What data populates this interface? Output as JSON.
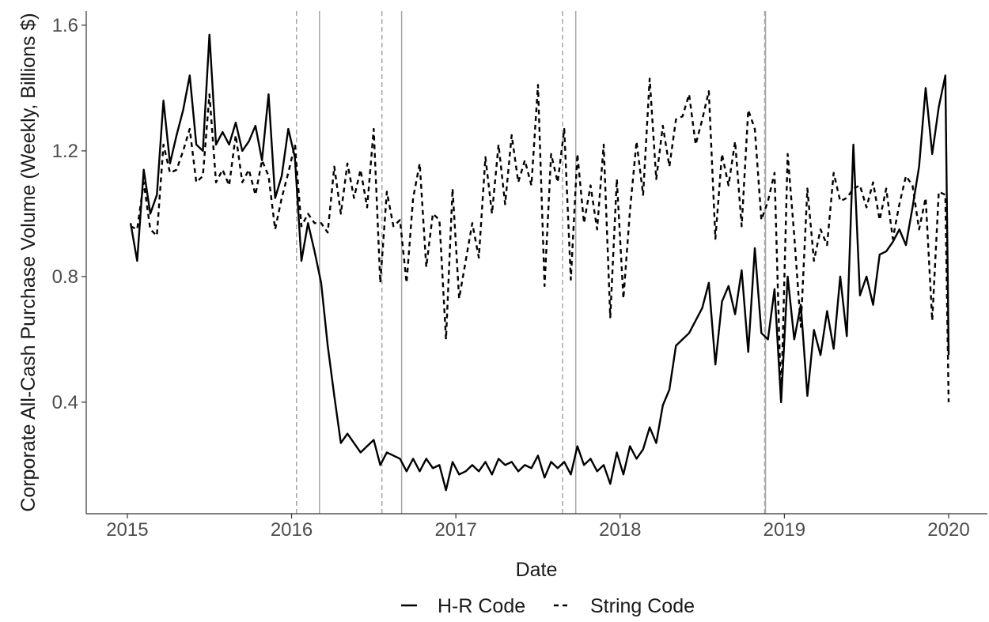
{
  "chart_data": {
    "type": "line",
    "x_label": "Date",
    "y_label": "Corporate All-Cash Purchase Volume (Weekly, Billions $)",
    "xlim": [
      2014.75,
      2020.236
    ],
    "xticks": [
      2015,
      2016,
      2017,
      2018,
      2019,
      2020
    ],
    "ylim": [
      0.045,
      1.645
    ],
    "yticks": [
      0.4,
      0.8,
      1.2,
      1.6
    ],
    "grid": false,
    "legend_position": "bottom",
    "reference_lines": [
      {
        "x": 2016.03,
        "style": "dashed"
      },
      {
        "x": 2016.17,
        "style": "solid"
      },
      {
        "x": 2016.55,
        "style": "dashed"
      },
      {
        "x": 2016.67,
        "style": "solid"
      },
      {
        "x": 2017.65,
        "style": "dashed"
      },
      {
        "x": 2017.73,
        "style": "solid"
      },
      {
        "x": 2018.88,
        "style": "dashed"
      },
      {
        "x": 2018.885,
        "style": "solid"
      }
    ],
    "x": [
      2015.02,
      2015.06,
      2015.1,
      2015.14,
      2015.18,
      2015.22,
      2015.26,
      2015.3,
      2015.34,
      2015.38,
      2015.42,
      2015.46,
      2015.5,
      2015.54,
      2015.58,
      2015.62,
      2015.66,
      2015.7,
      2015.74,
      2015.78,
      2015.82,
      2015.86,
      2015.9,
      2015.94,
      2015.98,
      2016.02,
      2016.06,
      2016.1,
      2016.14,
      2016.18,
      2016.22,
      2016.26,
      2016.3,
      2016.34,
      2016.38,
      2016.42,
      2016.46,
      2016.5,
      2016.54,
      2016.58,
      2016.62,
      2016.66,
      2016.7,
      2016.74,
      2016.78,
      2016.82,
      2016.86,
      2016.9,
      2016.94,
      2016.98,
      2017.02,
      2017.06,
      2017.1,
      2017.14,
      2017.18,
      2017.22,
      2017.26,
      2017.3,
      2017.34,
      2017.38,
      2017.42,
      2017.46,
      2017.5,
      2017.54,
      2017.58,
      2017.62,
      2017.66,
      2017.7,
      2017.74,
      2017.78,
      2017.82,
      2017.86,
      2017.9,
      2017.94,
      2017.98,
      2018.02,
      2018.06,
      2018.1,
      2018.14,
      2018.18,
      2018.22,
      2018.26,
      2018.3,
      2018.34,
      2018.38,
      2018.42,
      2018.46,
      2018.5,
      2018.54,
      2018.58,
      2018.62,
      2018.66,
      2018.7,
      2018.74,
      2018.78,
      2018.82,
      2018.86,
      2018.9,
      2018.94,
      2018.98,
      2019.02,
      2019.06,
      2019.1,
      2019.14,
      2019.18,
      2019.22,
      2019.26,
      2019.3,
      2019.34,
      2019.38,
      2019.42,
      2019.46,
      2019.5,
      2019.54,
      2019.58,
      2019.62,
      2019.66,
      2019.7,
      2019.74,
      2019.78,
      2019.82,
      2019.86,
      2019.9,
      2019.94,
      2019.98,
      2020.0
    ],
    "series": [
      {
        "name": "H-R Code",
        "color": "#000000",
        "dash": "solid",
        "values": [
          0.97,
          0.85,
          1.14,
          1.0,
          1.06,
          1.36,
          1.16,
          1.25,
          1.33,
          1.44,
          1.22,
          1.2,
          1.57,
          1.22,
          1.26,
          1.22,
          1.29,
          1.2,
          1.23,
          1.28,
          1.17,
          1.38,
          1.05,
          1.12,
          1.27,
          1.18,
          0.85,
          0.97,
          0.88,
          0.78,
          0.58,
          0.42,
          0.27,
          0.3,
          0.27,
          0.24,
          0.26,
          0.28,
          0.2,
          0.24,
          0.23,
          0.22,
          0.18,
          0.22,
          0.18,
          0.22,
          0.19,
          0.2,
          0.12,
          0.21,
          0.17,
          0.18,
          0.2,
          0.18,
          0.21,
          0.17,
          0.22,
          0.2,
          0.21,
          0.18,
          0.2,
          0.19,
          0.23,
          0.16,
          0.21,
          0.19,
          0.21,
          0.17,
          0.26,
          0.2,
          0.22,
          0.18,
          0.2,
          0.14,
          0.24,
          0.17,
          0.26,
          0.22,
          0.25,
          0.32,
          0.27,
          0.39,
          0.44,
          0.58,
          0.6,
          0.62,
          0.66,
          0.7,
          0.78,
          0.52,
          0.72,
          0.77,
          0.68,
          0.82,
          0.56,
          0.89,
          0.62,
          0.6,
          0.76,
          0.4,
          0.8,
          0.6,
          0.71,
          0.42,
          0.63,
          0.55,
          0.69,
          0.57,
          0.8,
          0.61,
          1.22,
          0.74,
          0.8,
          0.71,
          0.87,
          0.88,
          0.91,
          0.95,
          0.9,
          1.02,
          1.15,
          1.4,
          1.19,
          1.34,
          1.44,
          0.55
        ]
      },
      {
        "name": "String Code",
        "color": "#000000",
        "dash": "dashed",
        "values": [
          0.96,
          0.95,
          1.1,
          0.95,
          0.93,
          1.22,
          1.13,
          1.14,
          1.2,
          1.27,
          1.1,
          1.12,
          1.38,
          1.1,
          1.14,
          1.09,
          1.25,
          1.1,
          1.14,
          1.06,
          1.17,
          1.12,
          0.95,
          1.05,
          1.13,
          1.22,
          0.96,
          1.0,
          0.97,
          0.97,
          0.94,
          1.15,
          1.0,
          1.16,
          1.05,
          1.14,
          1.02,
          1.27,
          0.78,
          1.07,
          0.96,
          0.98,
          0.78,
          1.05,
          1.16,
          0.83,
          1.0,
          0.98,
          0.6,
          1.08,
          0.73,
          0.85,
          0.97,
          0.86,
          1.18,
          1.0,
          1.22,
          1.03,
          1.25,
          1.1,
          1.17,
          1.09,
          1.41,
          0.77,
          1.19,
          1.1,
          1.27,
          0.79,
          1.19,
          0.97,
          1.09,
          0.95,
          1.22,
          0.67,
          1.11,
          0.73,
          1.01,
          1.23,
          1.06,
          1.43,
          1.11,
          1.28,
          1.15,
          1.3,
          1.31,
          1.38,
          1.22,
          1.3,
          1.39,
          0.92,
          1.19,
          1.09,
          1.23,
          0.96,
          1.33,
          1.27,
          0.98,
          1.04,
          1.13,
          0.4,
          1.19,
          0.93,
          0.64,
          1.08,
          0.85,
          0.95,
          0.9,
          1.13,
          1.04,
          1.05,
          1.08,
          1.09,
          1.02,
          1.1,
          0.98,
          1.08,
          0.92,
          1.03,
          1.12,
          1.09,
          0.95,
          1.05,
          0.66,
          1.07,
          1.06,
          0.4
        ]
      }
    ]
  }
}
